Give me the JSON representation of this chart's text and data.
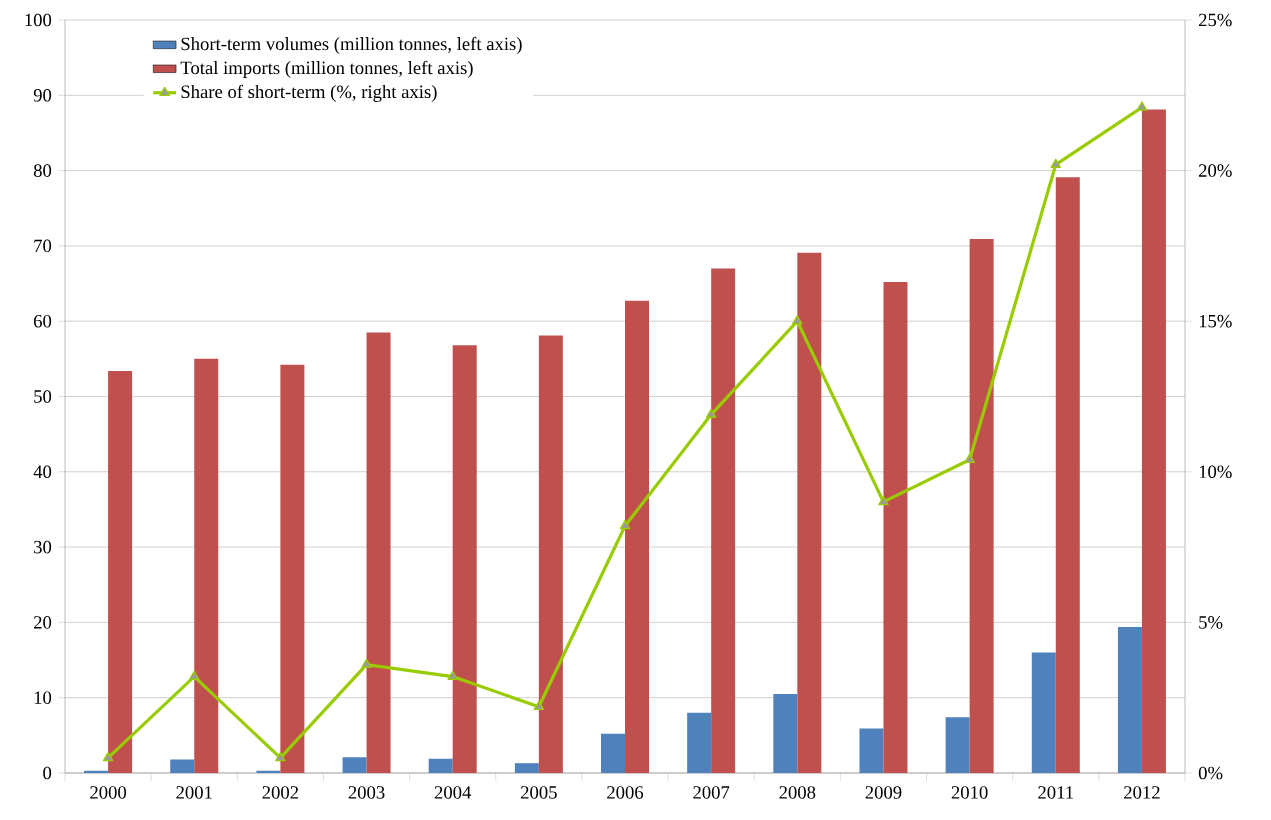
{
  "chart_data": {
    "type": "bar",
    "categories": [
      "2000",
      "2001",
      "2002",
      "2003",
      "2004",
      "2005",
      "2006",
      "2007",
      "2008",
      "2009",
      "2010",
      "2011",
      "2012"
    ],
    "series": [
      {
        "name": "Short-term volumes (million tonnes, left axis)",
        "color": "#4f81bd",
        "values": [
          0.3,
          1.8,
          0.3,
          2.1,
          1.9,
          1.3,
          5.2,
          8.0,
          10.5,
          5.9,
          7.4,
          16.0,
          19.4
        ]
      },
      {
        "name": "Total imports  (million tonnes, left axis)",
        "color": "#c0504d",
        "values": [
          53.4,
          55.0,
          54.2,
          58.5,
          56.8,
          58.1,
          62.7,
          67.0,
          69.1,
          65.2,
          70.9,
          79.1,
          88.1
        ]
      },
      {
        "name": "Share of short-term (%, right axis)",
        "type": "line",
        "axis": "y2",
        "color": "#99cc00",
        "marker": "triangle",
        "values": [
          0.5,
          3.2,
          0.5,
          3.6,
          3.2,
          2.2,
          8.2,
          11.9,
          15.0,
          9.0,
          10.4,
          20.2,
          22.1
        ]
      }
    ],
    "ylim": [
      0,
      100
    ],
    "yticks": [
      0,
      10,
      20,
      30,
      40,
      50,
      60,
      70,
      80,
      90,
      100
    ],
    "y2lim": [
      0,
      25
    ],
    "y2ticks": [
      {
        "value": 0,
        "label": "0%"
      },
      {
        "value": 5,
        "label": "5%"
      },
      {
        "value": 10,
        "label": "10%"
      },
      {
        "value": 15,
        "label": "15%"
      },
      {
        "value": 20,
        "label": "20%"
      },
      {
        "value": 25,
        "label": "25%"
      }
    ],
    "grid": "y",
    "legend": "top left"
  }
}
